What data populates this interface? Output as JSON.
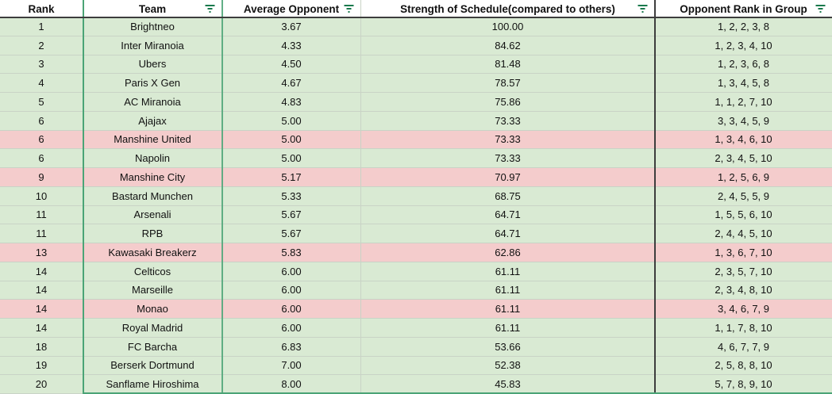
{
  "colors": {
    "row_green": "#d9ead3",
    "row_pink": "#f4cccc",
    "gridline": "#c9d3c6",
    "accent_green_border": "#4ba476",
    "dark_border": "#3d3d3d",
    "filter_icon_green": "#1a7a4d"
  },
  "table": {
    "columns": [
      {
        "label": "Rank",
        "has_filter": false
      },
      {
        "label": "Team",
        "has_filter": true
      },
      {
        "label": "Average Opponent",
        "has_filter": true
      },
      {
        "label": "Strength of Schedule(compared to others)",
        "has_filter": true
      },
      {
        "label": "Opponent Rank in Group",
        "has_filter": true
      }
    ],
    "rows": [
      {
        "rank": "1",
        "team": "Brightneo",
        "avg_opponent": "3.67",
        "sos": "100.00",
        "opp_ranks": "1, 2, 2, 3, 8",
        "highlight": "green"
      },
      {
        "rank": "2",
        "team": "Inter Miranoia",
        "avg_opponent": "4.33",
        "sos": "84.62",
        "opp_ranks": "1, 2, 3, 4, 10",
        "highlight": "green"
      },
      {
        "rank": "3",
        "team": "Ubers",
        "avg_opponent": "4.50",
        "sos": "81.48",
        "opp_ranks": "1, 2, 3, 6, 8",
        "highlight": "green"
      },
      {
        "rank": "4",
        "team": "Paris X Gen",
        "avg_opponent": "4.67",
        "sos": "78.57",
        "opp_ranks": "1, 3, 4, 5, 8",
        "highlight": "green"
      },
      {
        "rank": "5",
        "team": "AC Miranoia",
        "avg_opponent": "4.83",
        "sos": "75.86",
        "opp_ranks": "1, 1, 2, 7, 10",
        "highlight": "green"
      },
      {
        "rank": "6",
        "team": "Ajajax",
        "avg_opponent": "5.00",
        "sos": "73.33",
        "opp_ranks": "3, 3, 4, 5, 9",
        "highlight": "green"
      },
      {
        "rank": "6",
        "team": "Manshine United",
        "avg_opponent": "5.00",
        "sos": "73.33",
        "opp_ranks": "1, 3, 4, 6, 10",
        "highlight": "pink"
      },
      {
        "rank": "6",
        "team": "Napolin",
        "avg_opponent": "5.00",
        "sos": "73.33",
        "opp_ranks": "2, 3, 4, 5, 10",
        "highlight": "green"
      },
      {
        "rank": "9",
        "team": "Manshine City",
        "avg_opponent": "5.17",
        "sos": "70.97",
        "opp_ranks": "1, 2, 5, 6, 9",
        "highlight": "pink"
      },
      {
        "rank": "10",
        "team": "Bastard Munchen",
        "avg_opponent": "5.33",
        "sos": "68.75",
        "opp_ranks": "2, 4, 5, 5, 9",
        "highlight": "green"
      },
      {
        "rank": "11",
        "team": "Arsenali",
        "avg_opponent": "5.67",
        "sos": "64.71",
        "opp_ranks": "1, 5, 5, 6, 10",
        "highlight": "green"
      },
      {
        "rank": "11",
        "team": "RPB",
        "avg_opponent": "5.67",
        "sos": "64.71",
        "opp_ranks": "2, 4, 4, 5, 10",
        "highlight": "green"
      },
      {
        "rank": "13",
        "team": "Kawasaki Breakerz",
        "avg_opponent": "5.83",
        "sos": "62.86",
        "opp_ranks": "1, 3, 6, 7, 10",
        "highlight": "pink"
      },
      {
        "rank": "14",
        "team": "Celticos",
        "avg_opponent": "6.00",
        "sos": "61.11",
        "opp_ranks": "2, 3, 5, 7, 10",
        "highlight": "green"
      },
      {
        "rank": "14",
        "team": "Marseille",
        "avg_opponent": "6.00",
        "sos": "61.11",
        "opp_ranks": "2, 3, 4, 8, 10",
        "highlight": "green"
      },
      {
        "rank": "14",
        "team": "Monao",
        "avg_opponent": "6.00",
        "sos": "61.11",
        "opp_ranks": "3, 4, 6, 7, 9",
        "highlight": "pink"
      },
      {
        "rank": "14",
        "team": "Royal Madrid",
        "avg_opponent": "6.00",
        "sos": "61.11",
        "opp_ranks": "1, 1, 7, 8, 10",
        "highlight": "green"
      },
      {
        "rank": "18",
        "team": "FC Barcha",
        "avg_opponent": "6.83",
        "sos": "53.66",
        "opp_ranks": "4, 6, 7, 7, 9",
        "highlight": "green"
      },
      {
        "rank": "19",
        "team": "Berserk Dortmund",
        "avg_opponent": "7.00",
        "sos": "52.38",
        "opp_ranks": "2, 5, 8, 8, 10",
        "highlight": "green"
      },
      {
        "rank": "20",
        "team": "Sanflame Hiroshima",
        "avg_opponent": "8.00",
        "sos": "45.83",
        "opp_ranks": "5, 7, 8, 9, 10",
        "highlight": "green"
      }
    ]
  }
}
